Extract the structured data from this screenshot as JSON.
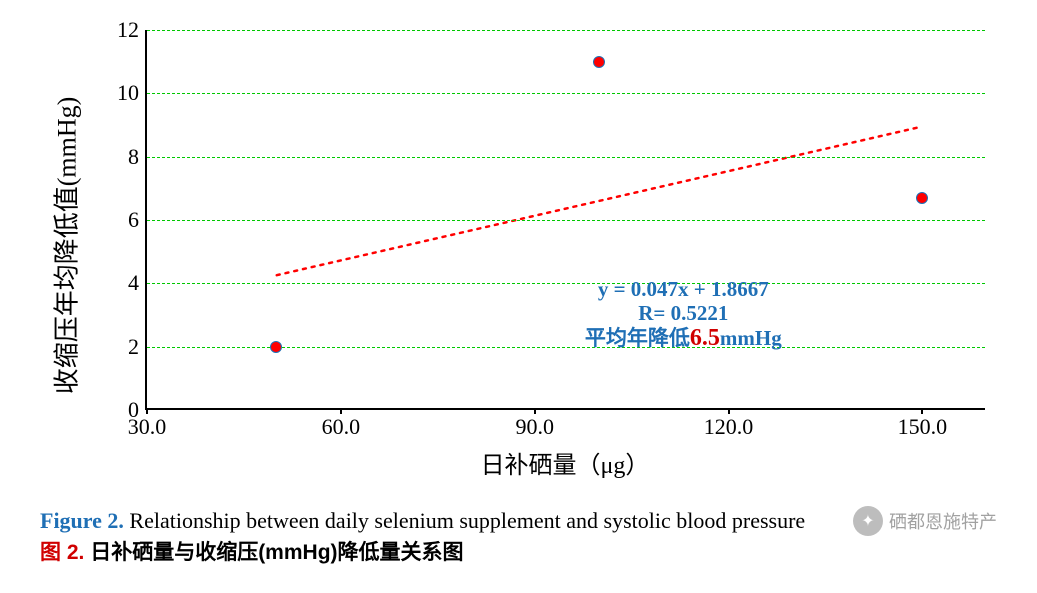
{
  "chart": {
    "type": "scatter",
    "xlabel": "日补硒量（μg）",
    "ylabel": "收缩压年均降低值(mmHg)",
    "xlabel_fontsize": 24,
    "ylabel_fontsize": 26,
    "xlim": [
      30.0,
      160.0
    ],
    "ylim": [
      0,
      12
    ],
    "xticks": [
      30.0,
      60.0,
      90.0,
      120.0,
      150.0
    ],
    "xtick_labels": [
      "30.0",
      "60.0",
      "90.0",
      "120.0",
      "150.0"
    ],
    "yticks": [
      0,
      2,
      4,
      6,
      8,
      10,
      12
    ],
    "ytick_labels": [
      "0",
      "2",
      "4",
      "6",
      "8",
      "10",
      "12"
    ],
    "tick_fontsize": 22,
    "grid_color": "#00c800",
    "grid_dash": "5,5",
    "axis_color": "#000000",
    "background_color": "#ffffff",
    "points": [
      {
        "x": 50,
        "y": 2.0
      },
      {
        "x": 100,
        "y": 11.0
      },
      {
        "x": 150,
        "y": 6.7
      }
    ],
    "marker": {
      "size": 12,
      "fill": "#ff0000",
      "stroke": "#1f6fb5",
      "stroke_width": 1.5
    },
    "trendline": {
      "slope": 0.047,
      "intercept": 1.8667,
      "x_start": 50,
      "x_end": 150,
      "color": "#ff0000",
      "width": 2.5,
      "dash": "3,6"
    },
    "annotation": {
      "line1": "y = 0.047x + 1.8667",
      "line2": "R= 0.5221",
      "line3_prefix": "平均年降低",
      "line3_value": "6.5",
      "line3_suffix": "mmHg",
      "color_main": "#1f6fb5",
      "color_highlight": "#d00000",
      "fontsize_main": 21,
      "fontsize_highlight": 24,
      "position_x": 113,
      "position_y": 3.0
    }
  },
  "caption": {
    "en_label": "Figure 2.",
    "en_text": " Relationship between daily selenium supplement and systolic blood pressure",
    "en_label_color": "#1f6fb5",
    "cn_label": "图 2.",
    "cn_text": " 日补硒量与收缩压(mmHg)降低量关系图",
    "cn_label_color": "#d00000"
  },
  "watermark": {
    "text": "硒都恩施特产",
    "icon_glyph": "✦"
  }
}
